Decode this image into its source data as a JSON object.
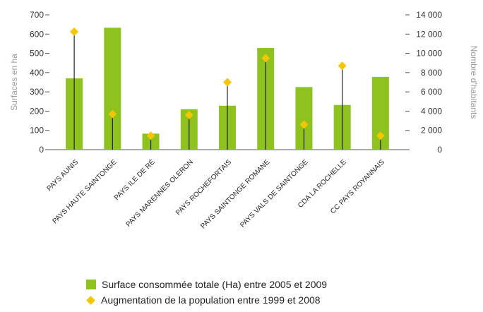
{
  "chart_data": {
    "type": "bar",
    "title": "",
    "categories": [
      "PAYS AUNIS",
      "PAYS HAUTE SAINTONGE",
      "PAYS ILE DE RÉ",
      "PAYS MARENNES OLERON",
      "PAYS ROCHEFORTAIS",
      "PAYS SAINTONGE ROMANE",
      "PAYS VALS DE SAINTONGE",
      "CDA LA ROCHELLE",
      "CC PAYS ROYANNAIS"
    ],
    "y_left": {
      "label": "Surfaces en ha",
      "ylim": [
        0,
        700
      ],
      "ticks": [
        "0",
        "100",
        "200",
        "300",
        "400",
        "500",
        "600",
        "700"
      ]
    },
    "y_right": {
      "label": "Nombre d'habitants",
      "ylim": [
        0,
        14000
      ],
      "ticks": [
        "0",
        "2 000",
        "4 000",
        "6 000",
        "8 000",
        "10 000",
        "12 000",
        "14 000"
      ]
    },
    "series": [
      {
        "name": "Surface consommée totale (Ha) entre 2005 et 2009",
        "type": "bar",
        "axis": "left",
        "color": "#8dc21f",
        "values": [
          370,
          633,
          83,
          210,
          228,
          528,
          325,
          232,
          378
        ]
      },
      {
        "name": "Augmentation de la population entre 1999 et 2008",
        "type": "marker-with-drop-line",
        "axis": "right",
        "color": "#f3c600",
        "values": [
          12250,
          3700,
          1450,
          3600,
          7000,
          9500,
          2600,
          8700,
          1450
        ]
      }
    ],
    "legend_position": "bottom",
    "grid": false
  }
}
